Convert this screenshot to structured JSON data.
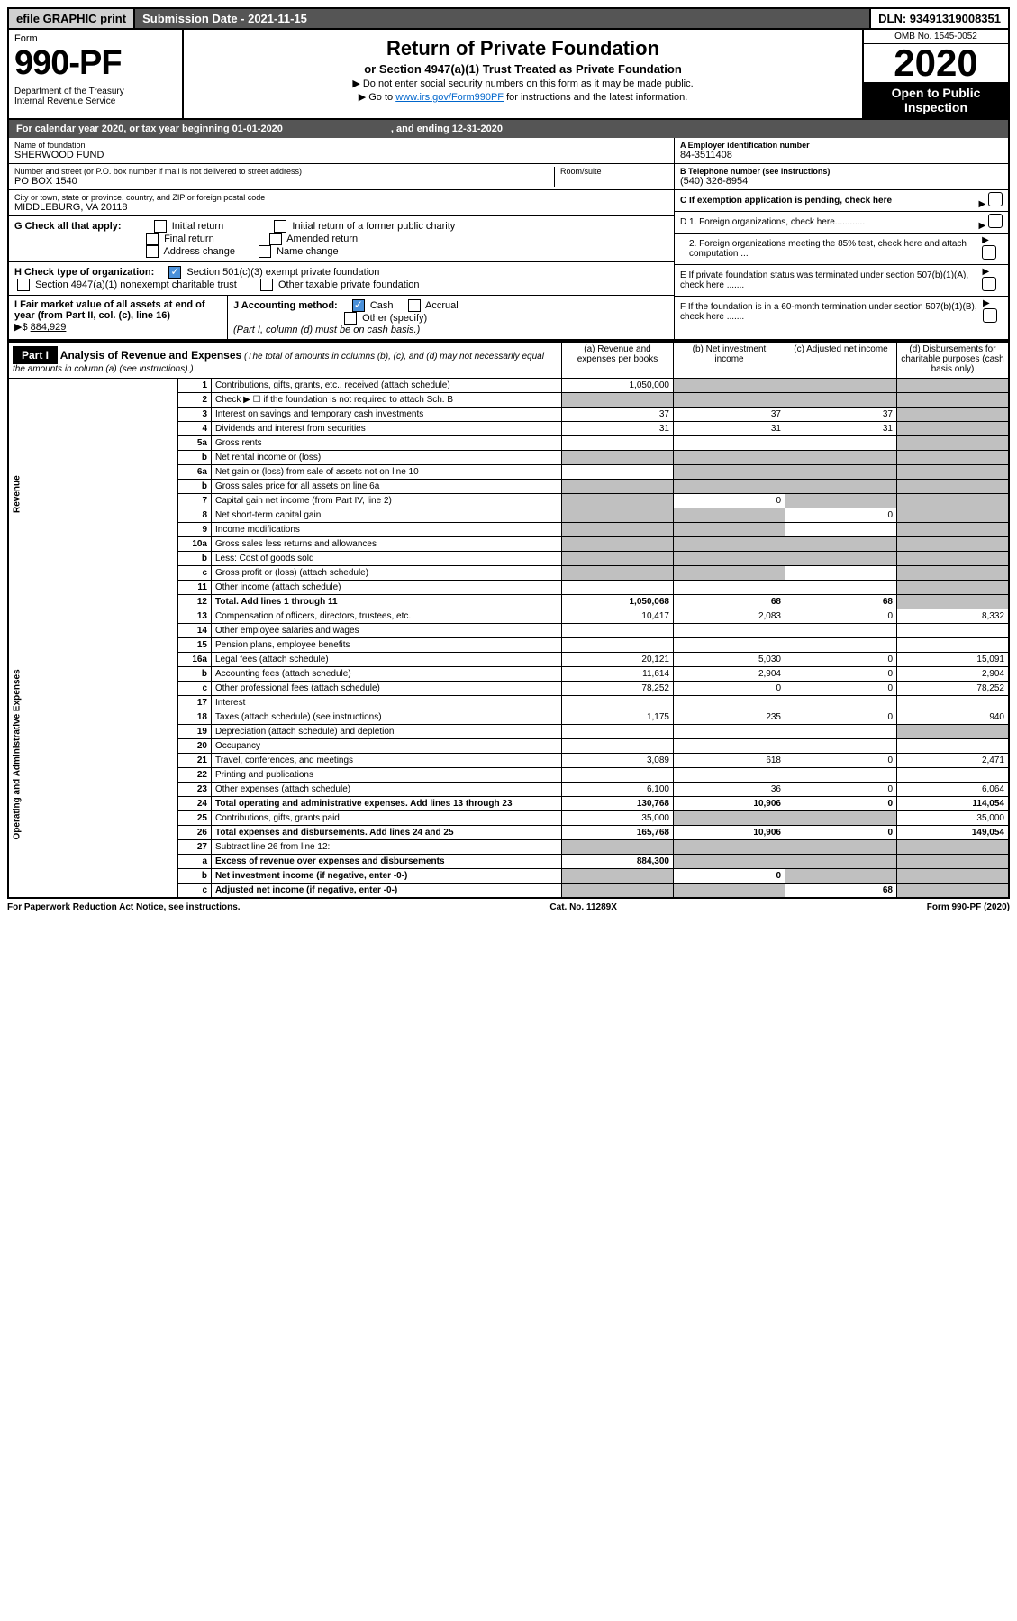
{
  "header_bar": {
    "efile": "efile GRAPHIC print",
    "submission": "Submission Date - 2021-11-15",
    "dln": "DLN: 93491319008351"
  },
  "form_header": {
    "form_word": "Form",
    "form_num": "990-PF",
    "dept": "Department of the Treasury\nInternal Revenue Service",
    "title": "Return of Private Foundation",
    "subtitle": "or Section 4947(a)(1) Trust Treated as Private Foundation",
    "instr1": "▶ Do not enter social security numbers on this form as it may be made public.",
    "instr2_pre": "▶ Go to ",
    "instr2_link": "www.irs.gov/Form990PF",
    "instr2_post": " for instructions and the latest information.",
    "omb": "OMB No. 1545-0052",
    "year": "2020",
    "open_pub": "Open to Public Inspection"
  },
  "cal_year": {
    "text": "For calendar year 2020, or tax year beginning 01-01-2020",
    "ending": ", and ending 12-31-2020"
  },
  "foundation": {
    "name_label": "Name of foundation",
    "name": "SHERWOOD FUND",
    "street_label": "Number and street (or P.O. box number if mail is not delivered to street address)",
    "street": "PO BOX 1540",
    "room_label": "Room/suite",
    "city_label": "City or town, state or province, country, and ZIP or foreign postal code",
    "city": "MIDDLEBURG, VA  20118",
    "ein_label": "A Employer identification number",
    "ein": "84-3511408",
    "phone_label": "B Telephone number (see instructions)",
    "phone": "(540) 326-8954",
    "c_label": "C If exemption application is pending, check here"
  },
  "section_g": {
    "label": "G Check all that apply:",
    "opts": [
      "Initial return",
      "Final return",
      "Address change",
      "Initial return of a former public charity",
      "Amended return",
      "Name change"
    ]
  },
  "section_h": {
    "label": "H Check type of organization:",
    "opt1": "Section 501(c)(3) exempt private foundation",
    "opt2": "Section 4947(a)(1) nonexempt charitable trust",
    "opt3": "Other taxable private foundation"
  },
  "section_i": {
    "label": "I Fair market value of all assets at end of year (from Part II, col. (c), line 16)",
    "arrow": "▶$",
    "value": "884,929"
  },
  "section_j": {
    "label": "J Accounting method:",
    "cash": "Cash",
    "accrual": "Accrual",
    "other": "Other (specify)",
    "note": "(Part I, column (d) must be on cash basis.)"
  },
  "right_d": {
    "d1": "D 1. Foreign organizations, check here............",
    "d2": "2. Foreign organizations meeting the 85% test, check here and attach computation ...",
    "e": "E  If private foundation status was terminated under section 507(b)(1)(A), check here .......",
    "f": "F  If the foundation is in a 60-month termination under section 507(b)(1)(B), check here ......."
  },
  "part1": {
    "label": "Part I",
    "title": "Analysis of Revenue and Expenses",
    "sub": "(The total of amounts in columns (b), (c), and (d) may not necessarily equal the amounts in column (a) (see instructions).)",
    "col_a": "(a)   Revenue and expenses per books",
    "col_b": "(b)   Net investment income",
    "col_c": "(c)   Adjusted net income",
    "col_d": "(d)  Disbursements for charitable purposes (cash basis only)"
  },
  "side_labels": {
    "revenue": "Revenue",
    "expenses": "Operating and Administrative Expenses"
  },
  "rows": [
    {
      "n": "1",
      "desc": "Contributions, gifts, grants, etc., received (attach schedule)",
      "a": "1,050,000",
      "b": "",
      "c": "",
      "d": "",
      "shade": [
        "b",
        "c",
        "d"
      ]
    },
    {
      "n": "2",
      "desc": "Check ▶ ☐ if the foundation is not required to attach Sch. B",
      "a": "",
      "b": "",
      "c": "",
      "d": "",
      "shade": [
        "a",
        "b",
        "c",
        "d"
      ]
    },
    {
      "n": "3",
      "desc": "Interest on savings and temporary cash investments",
      "a": "37",
      "b": "37",
      "c": "37",
      "d": "",
      "shade": [
        "d"
      ]
    },
    {
      "n": "4",
      "desc": "Dividends and interest from securities",
      "a": "31",
      "b": "31",
      "c": "31",
      "d": "",
      "shade": [
        "d"
      ]
    },
    {
      "n": "5a",
      "desc": "Gross rents",
      "a": "",
      "b": "",
      "c": "",
      "d": "",
      "shade": [
        "d"
      ]
    },
    {
      "n": "b",
      "desc": "Net rental income or (loss)",
      "a": "",
      "b": "",
      "c": "",
      "d": "",
      "shade": [
        "a",
        "b",
        "c",
        "d"
      ]
    },
    {
      "n": "6a",
      "desc": "Net gain or (loss) from sale of assets not on line 10",
      "a": "",
      "b": "",
      "c": "",
      "d": "",
      "shade": [
        "b",
        "c",
        "d"
      ]
    },
    {
      "n": "b",
      "desc": "Gross sales price for all assets on line 6a",
      "a": "",
      "b": "",
      "c": "",
      "d": "",
      "shade": [
        "a",
        "b",
        "c",
        "d"
      ]
    },
    {
      "n": "7",
      "desc": "Capital gain net income (from Part IV, line 2)",
      "a": "",
      "b": "0",
      "c": "",
      "d": "",
      "shade": [
        "a",
        "c",
        "d"
      ]
    },
    {
      "n": "8",
      "desc": "Net short-term capital gain",
      "a": "",
      "b": "",
      "c": "0",
      "d": "",
      "shade": [
        "a",
        "b",
        "d"
      ]
    },
    {
      "n": "9",
      "desc": "Income modifications",
      "a": "",
      "b": "",
      "c": "",
      "d": "",
      "shade": [
        "a",
        "b",
        "d"
      ]
    },
    {
      "n": "10a",
      "desc": "Gross sales less returns and allowances",
      "a": "",
      "b": "",
      "c": "",
      "d": "",
      "shade": [
        "a",
        "b",
        "c",
        "d"
      ]
    },
    {
      "n": "b",
      "desc": "Less: Cost of goods sold",
      "a": "",
      "b": "",
      "c": "",
      "d": "",
      "shade": [
        "a",
        "b",
        "c",
        "d"
      ]
    },
    {
      "n": "c",
      "desc": "Gross profit or (loss) (attach schedule)",
      "a": "",
      "b": "",
      "c": "",
      "d": "",
      "shade": [
        "a",
        "b",
        "d"
      ]
    },
    {
      "n": "11",
      "desc": "Other income (attach schedule)",
      "a": "",
      "b": "",
      "c": "",
      "d": "",
      "shade": [
        "d"
      ]
    },
    {
      "n": "12",
      "desc": "Total. Add lines 1 through 11",
      "a": "1,050,068",
      "b": "68",
      "c": "68",
      "d": "",
      "bold": true,
      "shade": [
        "d"
      ]
    },
    {
      "n": "13",
      "desc": "Compensation of officers, directors, trustees, etc.",
      "a": "10,417",
      "b": "2,083",
      "c": "0",
      "d": "8,332"
    },
    {
      "n": "14",
      "desc": "Other employee salaries and wages",
      "a": "",
      "b": "",
      "c": "",
      "d": ""
    },
    {
      "n": "15",
      "desc": "Pension plans, employee benefits",
      "a": "",
      "b": "",
      "c": "",
      "d": ""
    },
    {
      "n": "16a",
      "desc": "Legal fees (attach schedule)",
      "a": "20,121",
      "b": "5,030",
      "c": "0",
      "d": "15,091"
    },
    {
      "n": "b",
      "desc": "Accounting fees (attach schedule)",
      "a": "11,614",
      "b": "2,904",
      "c": "0",
      "d": "2,904"
    },
    {
      "n": "c",
      "desc": "Other professional fees (attach schedule)",
      "a": "78,252",
      "b": "0",
      "c": "0",
      "d": "78,252"
    },
    {
      "n": "17",
      "desc": "Interest",
      "a": "",
      "b": "",
      "c": "",
      "d": ""
    },
    {
      "n": "18",
      "desc": "Taxes (attach schedule) (see instructions)",
      "a": "1,175",
      "b": "235",
      "c": "0",
      "d": "940"
    },
    {
      "n": "19",
      "desc": "Depreciation (attach schedule) and depletion",
      "a": "",
      "b": "",
      "c": "",
      "d": "",
      "shade": [
        "d"
      ]
    },
    {
      "n": "20",
      "desc": "Occupancy",
      "a": "",
      "b": "",
      "c": "",
      "d": ""
    },
    {
      "n": "21",
      "desc": "Travel, conferences, and meetings",
      "a": "3,089",
      "b": "618",
      "c": "0",
      "d": "2,471"
    },
    {
      "n": "22",
      "desc": "Printing and publications",
      "a": "",
      "b": "",
      "c": "",
      "d": ""
    },
    {
      "n": "23",
      "desc": "Other expenses (attach schedule)",
      "a": "6,100",
      "b": "36",
      "c": "0",
      "d": "6,064"
    },
    {
      "n": "24",
      "desc": "Total operating and administrative expenses. Add lines 13 through 23",
      "a": "130,768",
      "b": "10,906",
      "c": "0",
      "d": "114,054",
      "bold": true
    },
    {
      "n": "25",
      "desc": "Contributions, gifts, grants paid",
      "a": "35,000",
      "b": "",
      "c": "",
      "d": "35,000",
      "shade": [
        "b",
        "c"
      ]
    },
    {
      "n": "26",
      "desc": "Total expenses and disbursements. Add lines 24 and 25",
      "a": "165,768",
      "b": "10,906",
      "c": "0",
      "d": "149,054",
      "bold": true
    },
    {
      "n": "27",
      "desc": "Subtract line 26 from line 12:",
      "a": "",
      "b": "",
      "c": "",
      "d": "",
      "shade": [
        "a",
        "b",
        "c",
        "d"
      ]
    },
    {
      "n": "a",
      "desc": "Excess of revenue over expenses and disbursements",
      "a": "884,300",
      "b": "",
      "c": "",
      "d": "",
      "bold": true,
      "shade": [
        "b",
        "c",
        "d"
      ]
    },
    {
      "n": "b",
      "desc": "Net investment income (if negative, enter -0-)",
      "a": "",
      "b": "0",
      "c": "",
      "d": "",
      "bold": true,
      "shade": [
        "a",
        "c",
        "d"
      ]
    },
    {
      "n": "c",
      "desc": "Adjusted net income (if negative, enter -0-)",
      "a": "",
      "b": "",
      "c": "68",
      "d": "",
      "bold": true,
      "shade": [
        "a",
        "b",
        "d"
      ]
    }
  ],
  "footer": {
    "left": "For Paperwork Reduction Act Notice, see instructions.",
    "center": "Cat. No. 11289X",
    "right": "Form 990-PF (2020)"
  }
}
